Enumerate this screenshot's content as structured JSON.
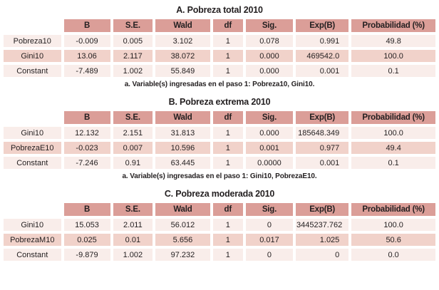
{
  "colors": {
    "header_bg": "#db9e98",
    "row_light": "#f9edea",
    "row_medium": "#f1d2ca",
    "text": "#231f20",
    "background": "#ffffff"
  },
  "tables": [
    {
      "title": "A. Pobreza total 2010",
      "columns": [
        "B",
        "S.E.",
        "Wald",
        "df",
        "Sig.",
        "Exp(B)",
        "Probabilidad (%)"
      ],
      "rows": [
        {
          "label": "Pobreza10",
          "values": [
            "-0.009",
            "0.005",
            "3.102",
            "1",
            "0.078",
            "0.991",
            "49.8"
          ]
        },
        {
          "label": "Gini10",
          "values": [
            "13.06",
            "2.117",
            "38.072",
            "1",
            "0.000",
            "469542.0",
            "100.0"
          ]
        },
        {
          "label": "Constant",
          "values": [
            "-7.489",
            "1.002",
            "55.849",
            "1",
            "0.000",
            "0.001",
            "0.1"
          ]
        }
      ],
      "footnote": "a. Variable(s) ingresadas en el paso 1: Pobreza10, Gini10."
    },
    {
      "title": "B. Pobreza extrema 2010",
      "columns": [
        "B",
        "S.E.",
        "Wald",
        "df",
        "Sig.",
        "Exp(B)",
        "Probabilidad (%)"
      ],
      "rows": [
        {
          "label": "Gini10",
          "values": [
            "12.132",
            "2.151",
            "31.813",
            "1",
            "0.000",
            "185648.349",
            "100.0"
          ]
        },
        {
          "label": "PobrezaE10",
          "values": [
            "-0.023",
            "0.007",
            "10.596",
            "1",
            "0.001",
            "0.977",
            "49.4"
          ]
        },
        {
          "label": "Constant",
          "values": [
            "-7.246",
            "0.91",
            "63.445",
            "1",
            "0.0000",
            "0.001",
            "0.1"
          ]
        }
      ],
      "footnote": "a. Variable(s) ingresadas en el paso 1: Gini10, PobrezaE10."
    },
    {
      "title": "C. Pobreza moderada 2010",
      "columns": [
        "B",
        "S.E.",
        "Wald",
        "df",
        "Sig.",
        "Exp(B)",
        "Probabilidad (%)"
      ],
      "rows": [
        {
          "label": "Gini10",
          "values": [
            "15.053",
            "2.011",
            "56.012",
            "1",
            "0",
            "3445237.762",
            "100.0"
          ]
        },
        {
          "label": "PobrezaM10",
          "values": [
            "0.025",
            "0.01",
            "5.656",
            "1",
            "0.017",
            "1.025",
            "50.6"
          ]
        },
        {
          "label": "Constant",
          "values": [
            "-9.879",
            "1.002",
            "97.232",
            "1",
            "0",
            "0",
            "0.0"
          ]
        }
      ],
      "footnote": ""
    }
  ]
}
